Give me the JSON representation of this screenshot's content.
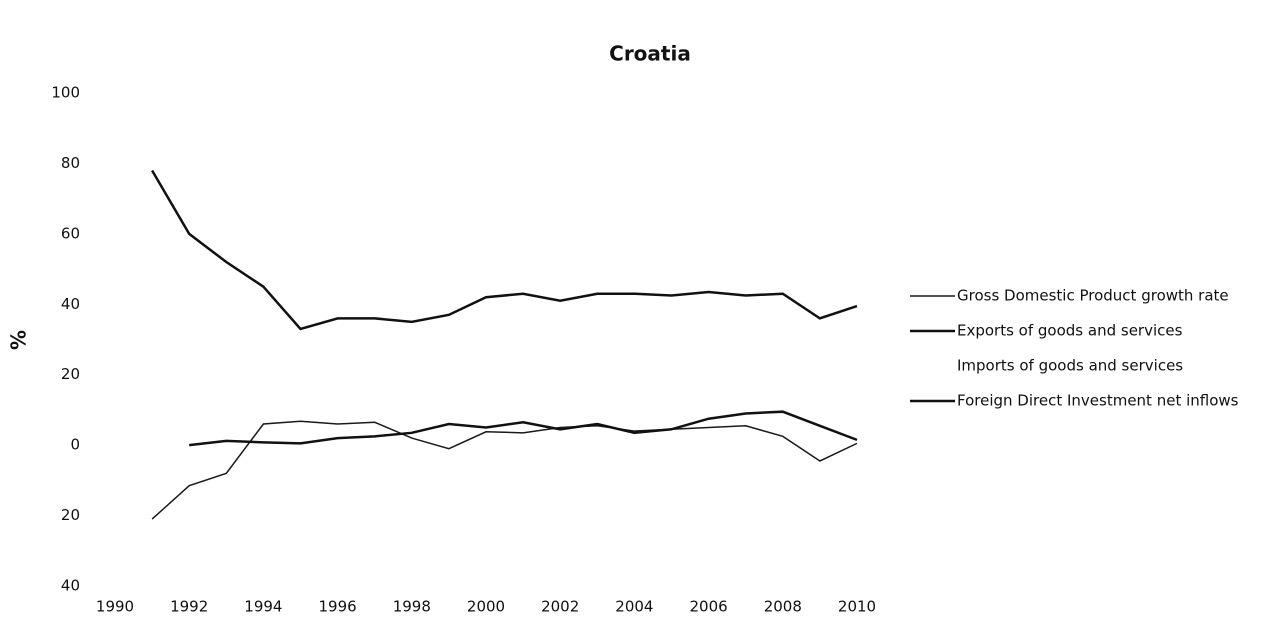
{
  "chart_data": {
    "type": "line",
    "title": "Croatia",
    "y_label": "%",
    "x": [
      1991,
      1992,
      1993,
      1994,
      1995,
      1996,
      1997,
      1998,
      1999,
      2000,
      2001,
      2002,
      2003,
      2004,
      2005,
      2006,
      2007,
      2008,
      2009,
      2010
    ],
    "series": [
      {
        "name": "Gross Domestic Product growth rate",
        "color": "#1a1a1a",
        "width": 1.5,
        "values": [
          -21,
          -11.5,
          -8,
          6,
          6.8,
          6,
          6.5,
          2,
          -1,
          3.8,
          3.5,
          5,
          5.5,
          4,
          4.5,
          5,
          5.5,
          2.5,
          -4.5,
          0.5
        ]
      },
      {
        "name": "Exports of goods and services",
        "color": "#111111",
        "width": 2.5,
        "values": [
          78,
          60,
          52,
          45,
          33,
          36,
          36,
          35,
          37,
          42,
          43,
          41,
          43,
          43,
          42.5,
          43.5,
          42.5,
          43,
          36,
          39.5
        ]
      },
      {
        "name": "Imports of goods and services",
        "color": "#111111",
        "width": 2.5,
        "values": [
          null,
          null,
          null,
          null,
          null,
          null,
          null,
          null,
          null,
          null,
          null,
          null,
          null,
          null,
          null,
          null,
          null,
          null,
          null,
          null
        ]
      },
      {
        "name": "Foreign Direct Investment net inflows",
        "color": "#111111",
        "width": 2.5,
        "values": [
          null,
          0,
          1.2,
          0.8,
          0.5,
          2,
          2.5,
          3.5,
          6,
          5,
          6.5,
          4.5,
          6,
          3.5,
          4.5,
          7.5,
          9,
          9.5,
          5.5,
          1.5
        ]
      }
    ],
    "xlim": [
      1990,
      2010
    ],
    "xticks": [
      1990,
      1992,
      1994,
      1996,
      1998,
      2000,
      2002,
      2004,
      2006,
      2008,
      2010
    ],
    "ylim": [
      -40,
      100
    ],
    "yticks": [
      {
        "value": -40,
        "label": "40"
      },
      {
        "value": -20,
        "label": "20"
      },
      0,
      20,
      40,
      60,
      80,
      100
    ],
    "grid": false,
    "legend": "right"
  }
}
